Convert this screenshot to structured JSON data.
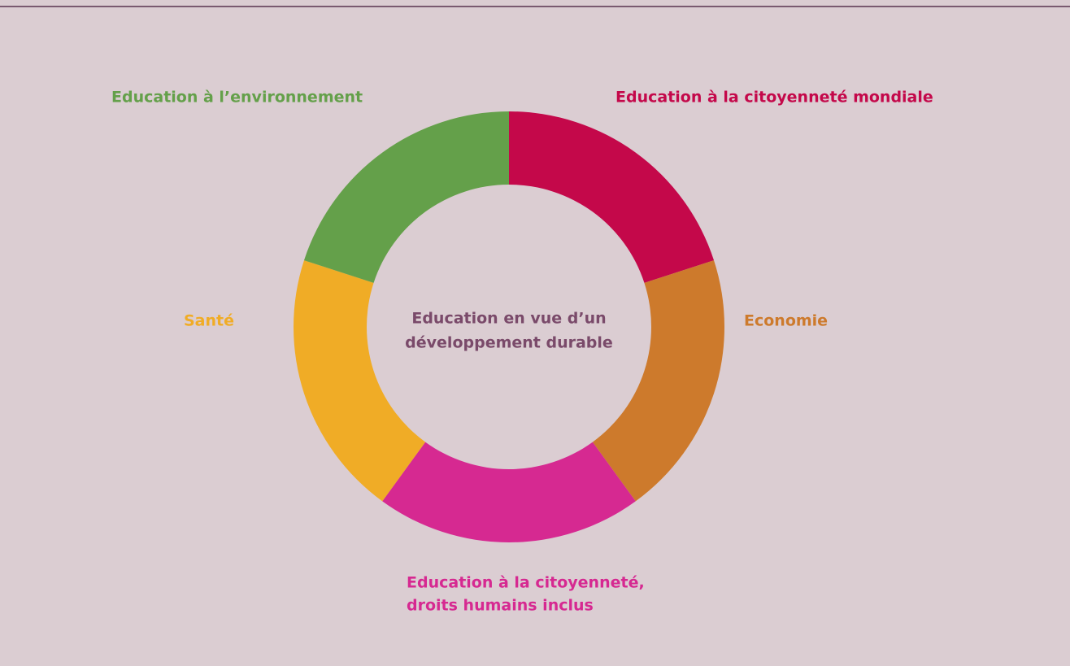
{
  "center": {
    "lines": [
      "Education en vue d’un",
      "développement durable"
    ],
    "color": "#7a4a6a"
  },
  "segments": [
    {
      "lines": [
        "Education à la citoyenneté mondiale"
      ],
      "color": "#c4084a"
    },
    {
      "lines": [
        "Economie"
      ],
      "color": "#cd7a2c"
    },
    {
      "lines": [
        "Education à la citoyenneté,",
        "droits humains inclus"
      ],
      "color": "#d62991"
    },
    {
      "lines": [
        "Santé"
      ],
      "color": "#f0ac26"
    },
    {
      "lines": [
        "Education à l’environnement"
      ],
      "color": "#64a04a"
    }
  ]
}
